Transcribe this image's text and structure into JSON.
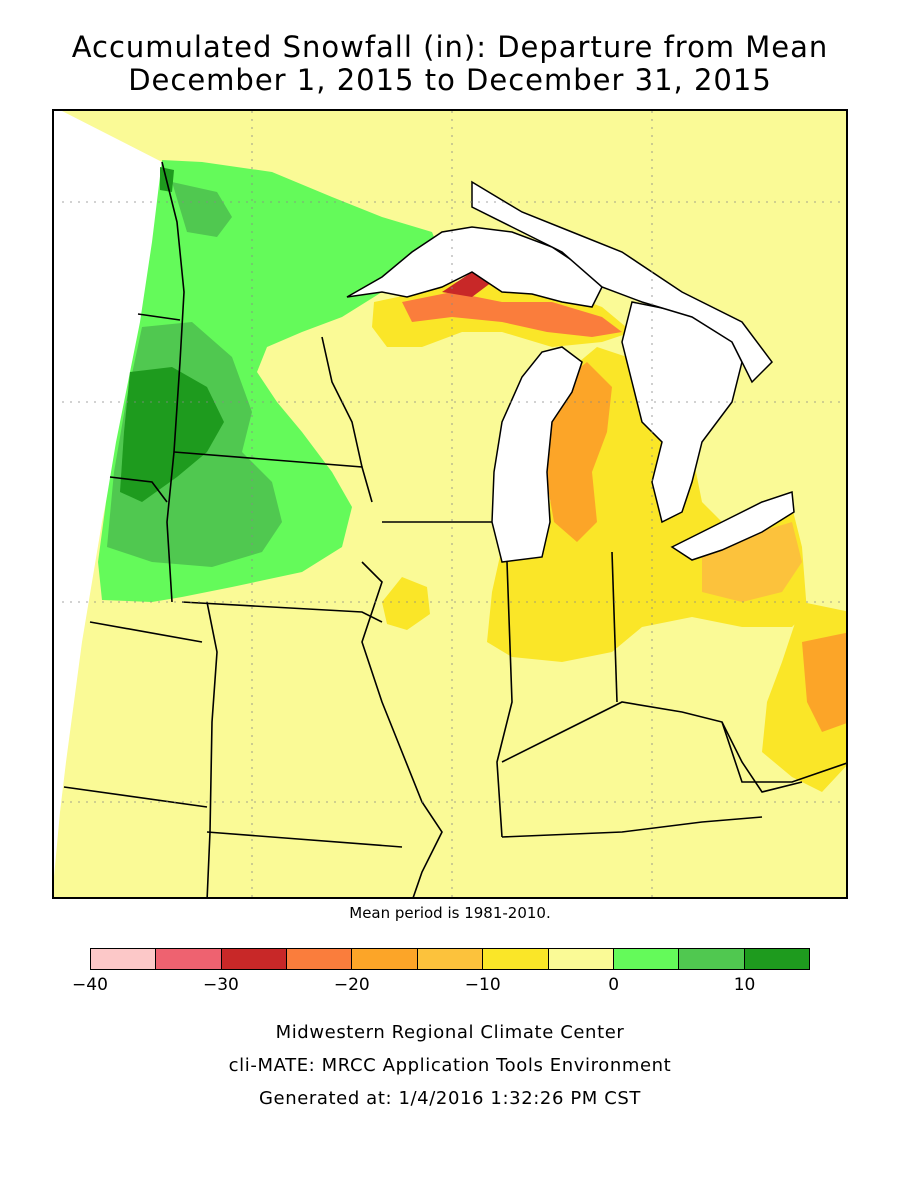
{
  "title_line1": "Accumulated Snowfall (in): Departure from Mean",
  "title_line2": "December 1, 2015 to December 31, 2015",
  "note": "Mean period is 1981-2010.",
  "legend": {
    "colors": [
      "#fcc8c8",
      "#ee6270",
      "#c82828",
      "#fa7d3c",
      "#fca528",
      "#fcc23c",
      "#fae628",
      "#fafa96",
      "#64fa5a",
      "#50c850",
      "#1e9b1e"
    ],
    "tick_labels": [
      "−40",
      "−30",
      "−20",
      "−10",
      "0",
      "10"
    ],
    "tick_values": [
      -40,
      -30,
      -20,
      -10,
      0,
      10
    ]
  },
  "footer": {
    "line1": "Midwestern Regional Climate Center",
    "line2": "cli-MATE: MRCC Application Tools Environment",
    "line3": "Generated at: 1/4/2016 1:32:26 PM CST"
  }
}
